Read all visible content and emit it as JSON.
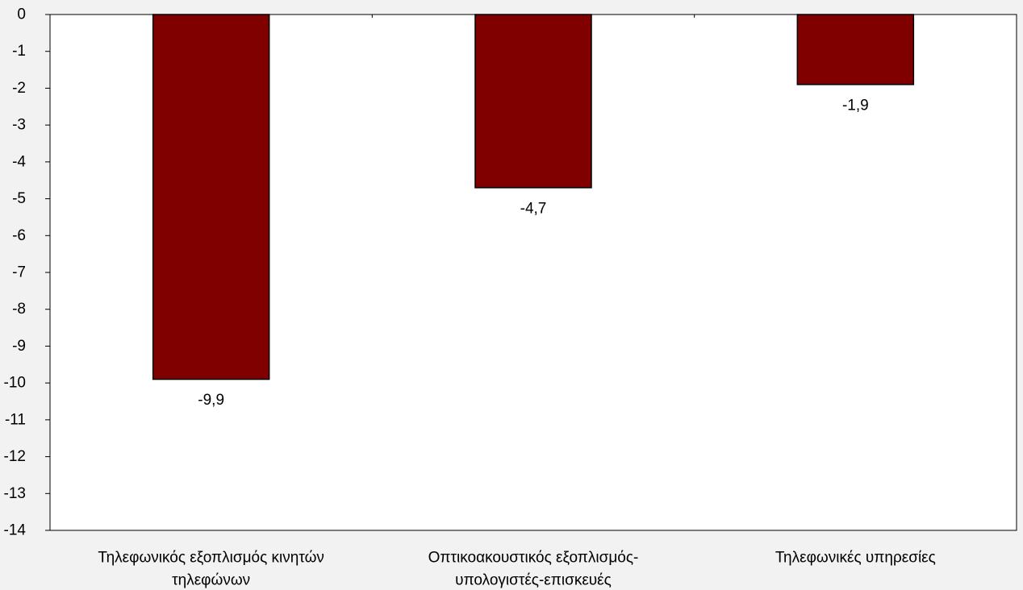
{
  "chart_data": {
    "type": "bar",
    "title": "",
    "xlabel": "",
    "ylabel": "",
    "categories": [
      [
        "Τηλεφωνικός εξοπλισμός κινητών",
        "τηλεφώνων"
      ],
      [
        "Οπτικοακουστικός εξοπλισμός-",
        "υπολογιστές-επισκευές"
      ],
      [
        "Τηλεφωνικές υπηρεσίες"
      ]
    ],
    "values": [
      -9.9,
      -4.7,
      -1.9
    ],
    "data_labels": [
      "-9,9",
      "-4,7",
      "-1,9"
    ],
    "ylim": [
      -14,
      0
    ],
    "yticks": [
      0,
      -1,
      -2,
      -3,
      -4,
      -5,
      -6,
      -7,
      -8,
      -9,
      -10,
      -11,
      -12,
      -13,
      -14
    ],
    "grid": false,
    "legend": "none",
    "colors": {
      "bar": "#800000",
      "bar_outline": "#000000",
      "plot_background": "#ffffff",
      "page_background": "#f2f2f2"
    }
  }
}
